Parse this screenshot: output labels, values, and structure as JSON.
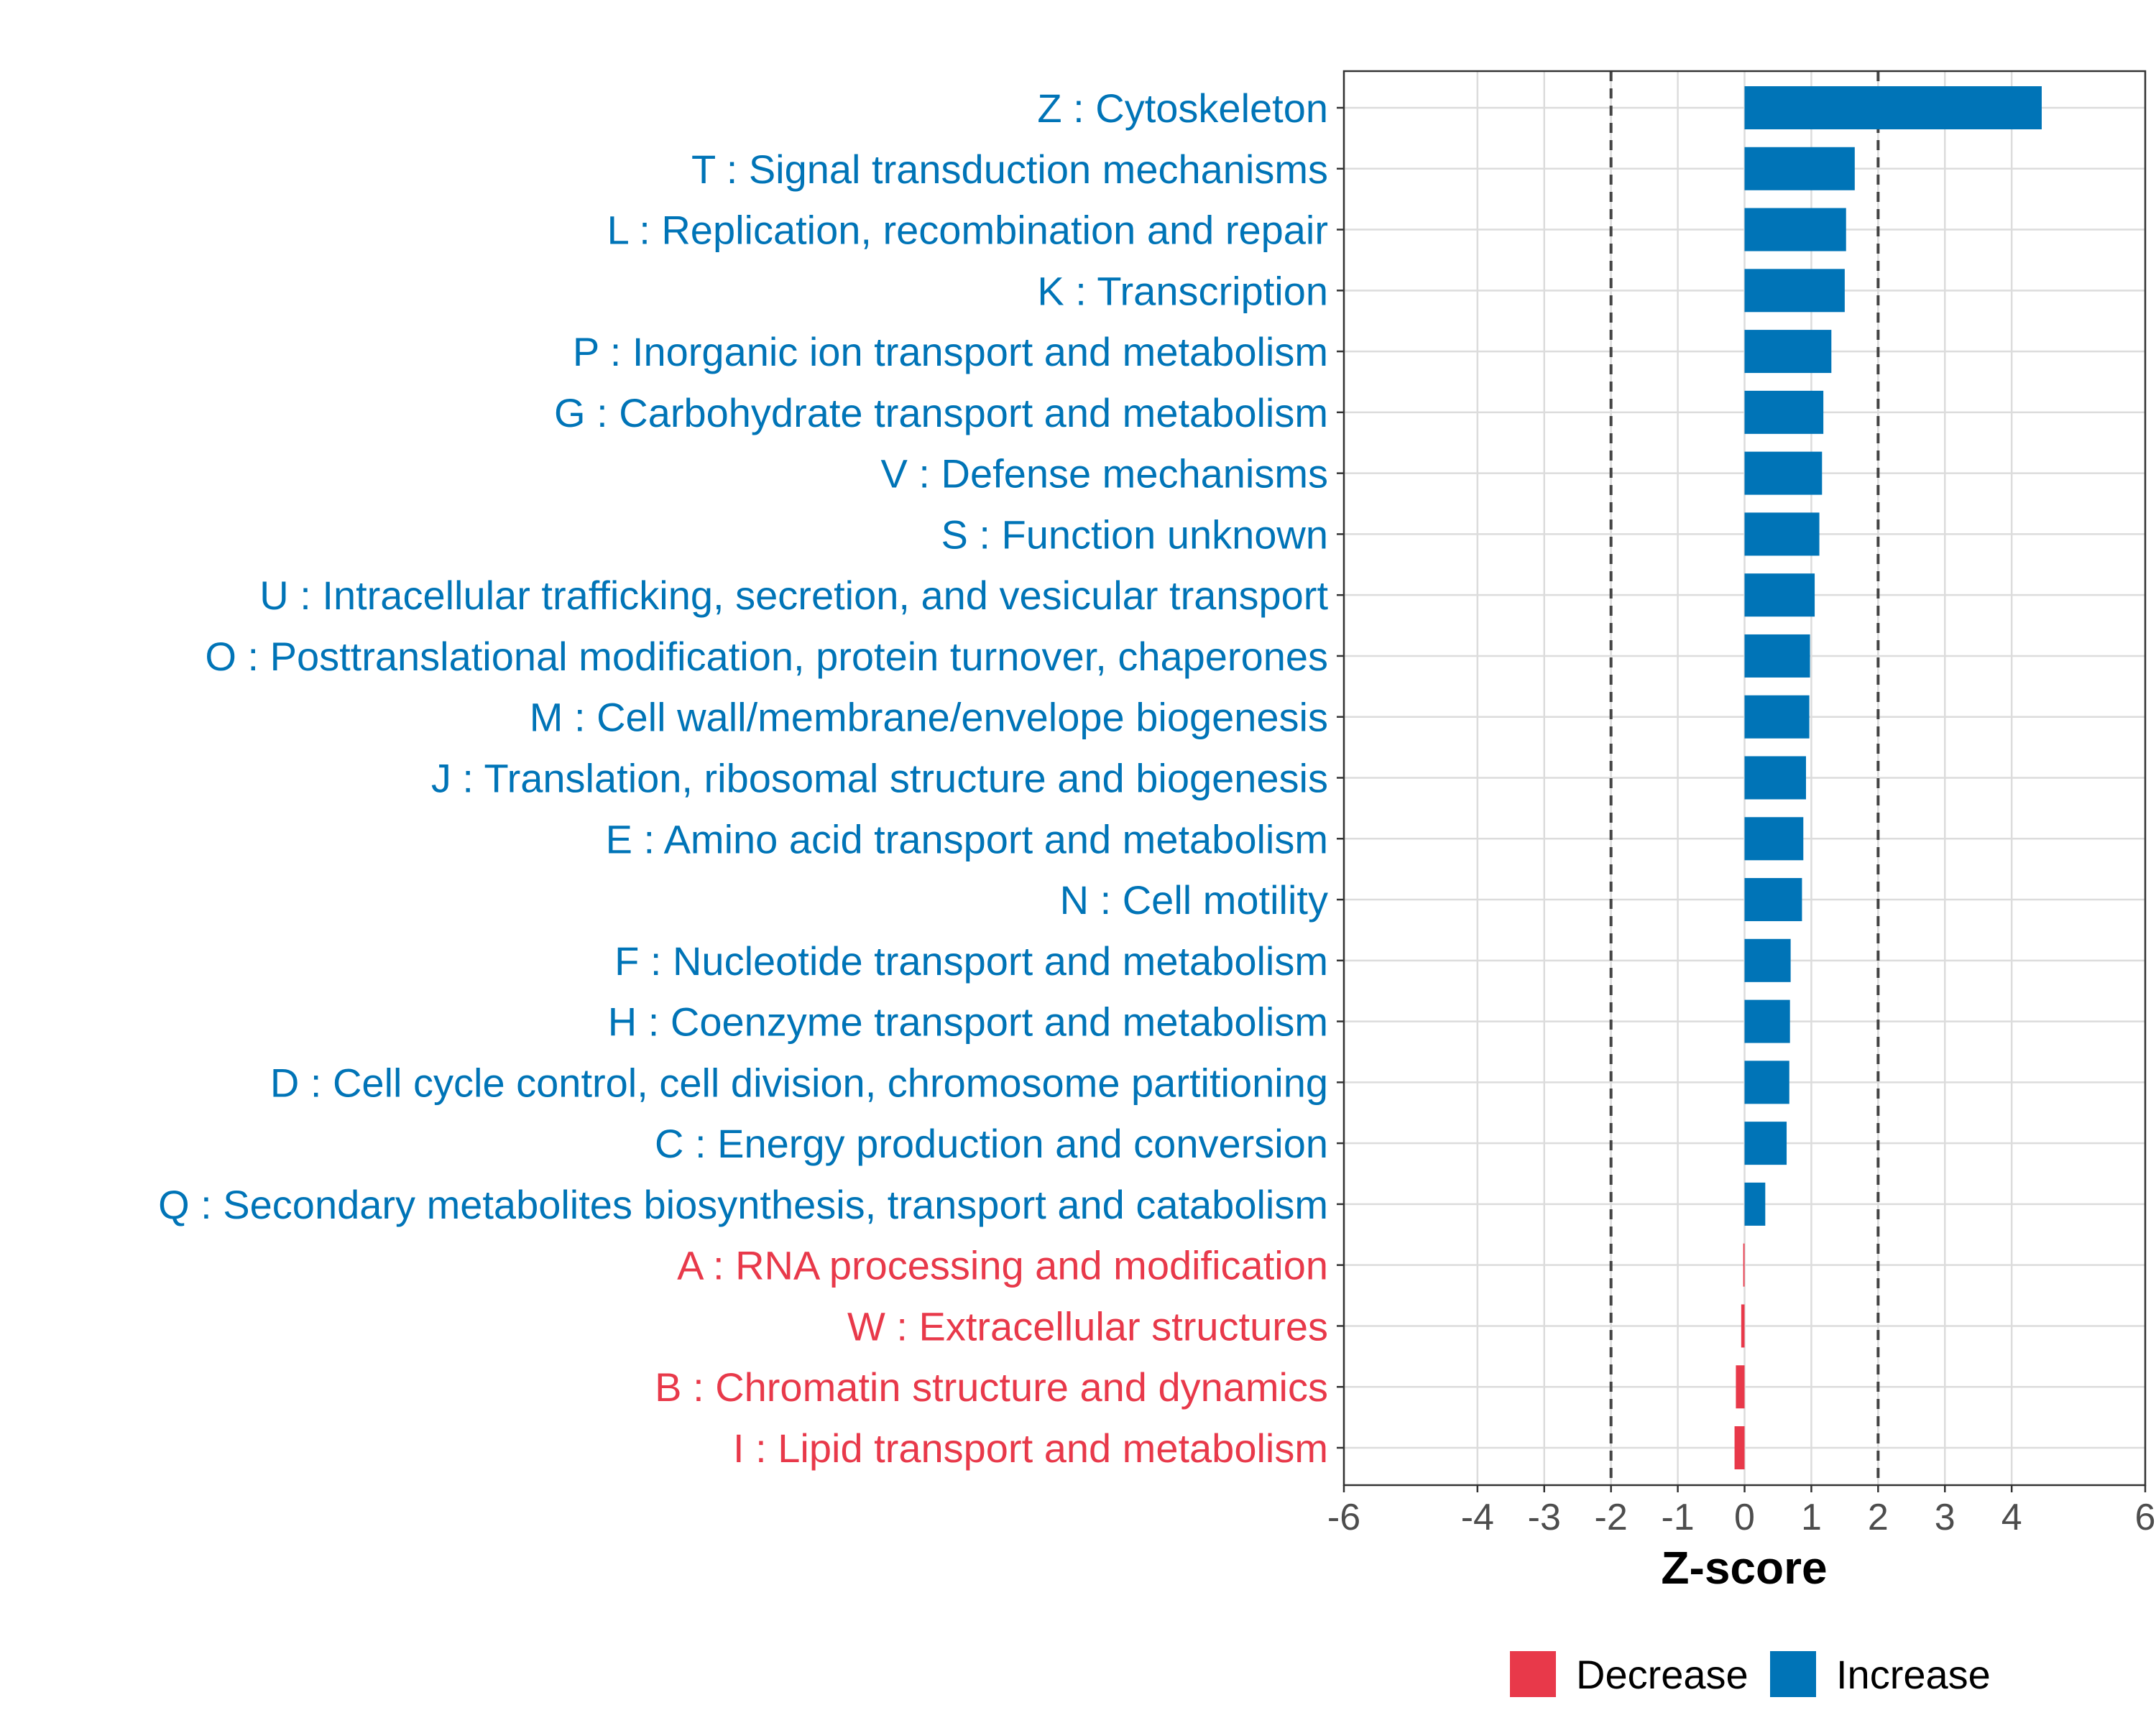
{
  "chart_data": {
    "type": "bar",
    "orientation": "horizontal",
    "xlabel": "Z-score",
    "ylabel": "",
    "xlim": [
      -6,
      6
    ],
    "xticks": [
      -6,
      -4,
      -3,
      -2,
      -1,
      0,
      1,
      2,
      3,
      4,
      6
    ],
    "xtick_labels": [
      "-6",
      "-4",
      "-3",
      "-2",
      "-1",
      "0",
      "1",
      "2",
      "3",
      "4",
      "6"
    ],
    "reference_lines": [
      -2,
      2
    ],
    "grid": true,
    "legend_position": "bottom",
    "categories": [
      "Z : Cytoskeleton",
      "T : Signal transduction mechanisms",
      "L : Replication, recombination and repair",
      "K : Transcription",
      "P : Inorganic ion transport and metabolism",
      "G : Carbohydrate transport and metabolism",
      "V : Defense mechanisms",
      "S : Function unknown",
      "U : Intracellular trafficking, secretion, and vesicular transport",
      "O : Posttranslational modification, protein turnover, chaperones",
      "M : Cell wall/membrane/envelope biogenesis",
      "J : Translation, ribosomal structure and biogenesis",
      "E : Amino acid transport and metabolism",
      "N : Cell motility",
      "F : Nucleotide transport and metabolism",
      "H : Coenzyme transport and metabolism",
      "D : Cell cycle control, cell division, chromosome partitioning",
      "C : Energy production and conversion",
      "Q : Secondary metabolites biosynthesis, transport and catabolism",
      "A : RNA processing and modification",
      "W : Extracellular structures",
      "B : Chromatin structure and dynamics",
      "I : Lipid transport and metabolism"
    ],
    "values": [
      4.45,
      1.65,
      1.52,
      1.5,
      1.3,
      1.18,
      1.16,
      1.12,
      1.05,
      0.98,
      0.97,
      0.92,
      0.88,
      0.86,
      0.69,
      0.68,
      0.67,
      0.63,
      0.31,
      -0.02,
      -0.05,
      -0.13,
      -0.15
    ],
    "groups": [
      "Increase",
      "Increase",
      "Increase",
      "Increase",
      "Increase",
      "Increase",
      "Increase",
      "Increase",
      "Increase",
      "Increase",
      "Increase",
      "Increase",
      "Increase",
      "Increase",
      "Increase",
      "Increase",
      "Increase",
      "Increase",
      "Increase",
      "Decrease",
      "Decrease",
      "Decrease",
      "Decrease"
    ],
    "legend": [
      {
        "name": "Decrease",
        "color": "#E8394A"
      },
      {
        "name": "Increase",
        "color": "#0074B7"
      }
    ]
  }
}
